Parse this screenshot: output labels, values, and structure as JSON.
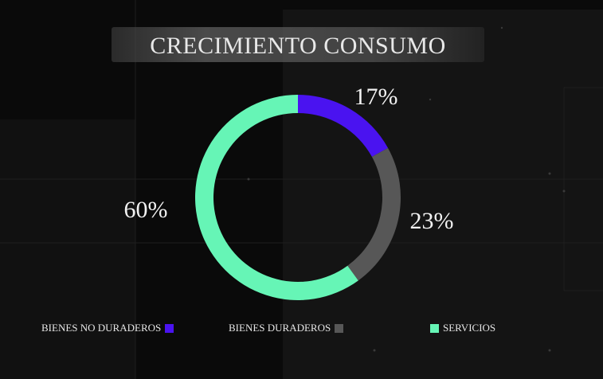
{
  "chart_data": {
    "type": "pie",
    "title": "CRECIMIENTO CONSUMO",
    "categories": [
      "BIENES NO DURADEROS",
      "BIENES DURADEROS",
      "SERVICIOS"
    ],
    "values": [
      17,
      23,
      60
    ],
    "labels": [
      "17%",
      "23%",
      "60%"
    ],
    "colors": [
      "#4a13f0",
      "#575757",
      "#66f5b6"
    ],
    "donut": true
  }
}
